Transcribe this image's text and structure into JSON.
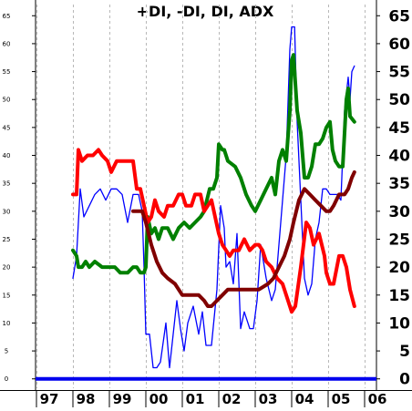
{
  "chart_data": {
    "type": "line",
    "title": "+DI, -DI, DI, ADX",
    "x_tick_labels": [
      "97",
      "98",
      "99",
      "00",
      "01",
      "02",
      "03",
      "04",
      "05",
      "06"
    ],
    "y_ticks": [
      0,
      5,
      10,
      15,
      20,
      25,
      30,
      35,
      40,
      45,
      50,
      55,
      60,
      65
    ],
    "ylim": [
      -2,
      67
    ],
    "x_range": [
      1997.0,
      2006.3
    ],
    "grid": "vertical dashed",
    "zero_line_color": "#0000ee",
    "series": [
      {
        "color": "#0000ff",
        "width": 1.3,
        "points": [
          [
            1998.0,
            18
          ],
          [
            1998.1,
            22
          ],
          [
            1998.2,
            34
          ],
          [
            1998.3,
            29
          ],
          [
            1998.45,
            31
          ],
          [
            1998.6,
            33
          ],
          [
            1998.75,
            34
          ],
          [
            1998.9,
            32
          ],
          [
            1999.05,
            34
          ],
          [
            1999.2,
            34
          ],
          [
            1999.35,
            33
          ],
          [
            1999.5,
            28
          ],
          [
            1999.65,
            33
          ],
          [
            1999.8,
            33
          ],
          [
            1999.9,
            30
          ],
          [
            1999.95,
            20
          ],
          [
            2000.0,
            8
          ],
          [
            2000.1,
            8
          ],
          [
            2000.2,
            2
          ],
          [
            2000.3,
            2
          ],
          [
            2000.4,
            3
          ],
          [
            2000.55,
            10
          ],
          [
            2000.65,
            2
          ],
          [
            2000.75,
            8
          ],
          [
            2000.85,
            14
          ],
          [
            2000.95,
            9
          ],
          [
            2001.05,
            5
          ],
          [
            2001.15,
            10
          ],
          [
            2001.3,
            13
          ],
          [
            2001.45,
            8
          ],
          [
            2001.55,
            12
          ],
          [
            2001.65,
            6
          ],
          [
            2001.8,
            6
          ],
          [
            2001.95,
            16
          ],
          [
            2002.05,
            31
          ],
          [
            2002.15,
            27
          ],
          [
            2002.2,
            20
          ],
          [
            2002.3,
            21
          ],
          [
            2002.4,
            17
          ],
          [
            2002.5,
            26
          ],
          [
            2002.6,
            9
          ],
          [
            2002.7,
            12
          ],
          [
            2002.85,
            9
          ],
          [
            2002.95,
            9
          ],
          [
            2003.05,
            14
          ],
          [
            2003.15,
            24
          ],
          [
            2003.3,
            18
          ],
          [
            2003.45,
            14
          ],
          [
            2003.55,
            16
          ],
          [
            2003.7,
            28
          ],
          [
            2003.85,
            40
          ],
          [
            2003.95,
            59
          ],
          [
            2004.0,
            63
          ],
          [
            2004.08,
            63
          ],
          [
            2004.15,
            46
          ],
          [
            2004.25,
            32
          ],
          [
            2004.35,
            18
          ],
          [
            2004.45,
            15
          ],
          [
            2004.55,
            17
          ],
          [
            2004.65,
            25
          ],
          [
            2004.75,
            28
          ],
          [
            2004.85,
            34
          ],
          [
            2004.95,
            34
          ],
          [
            2005.05,
            33
          ],
          [
            2005.15,
            33
          ],
          [
            2005.25,
            33
          ],
          [
            2005.35,
            32
          ],
          [
            2005.45,
            48
          ],
          [
            2005.55,
            54
          ],
          [
            2005.6,
            50
          ],
          [
            2005.65,
            55
          ],
          [
            2005.72,
            56
          ]
        ]
      },
      {
        "color": "#008000",
        "width": 4,
        "points": [
          [
            1998.0,
            23
          ],
          [
            1998.1,
            22
          ],
          [
            1998.15,
            20
          ],
          [
            1998.25,
            20
          ],
          [
            1998.35,
            21
          ],
          [
            1998.45,
            20
          ],
          [
            1998.6,
            21
          ],
          [
            1998.8,
            20
          ],
          [
            1999.0,
            20
          ],
          [
            1999.15,
            20
          ],
          [
            1999.3,
            19
          ],
          [
            1999.5,
            19
          ],
          [
            1999.65,
            20
          ],
          [
            1999.75,
            20
          ],
          [
            1999.85,
            19
          ],
          [
            1999.95,
            19
          ],
          [
            2000.0,
            20
          ],
          [
            2000.05,
            29
          ],
          [
            2000.15,
            26
          ],
          [
            2000.25,
            27
          ],
          [
            2000.35,
            25
          ],
          [
            2000.45,
            27
          ],
          [
            2000.6,
            27
          ],
          [
            2000.75,
            25
          ],
          [
            2000.9,
            27
          ],
          [
            2001.05,
            28
          ],
          [
            2001.2,
            27
          ],
          [
            2001.35,
            28
          ],
          [
            2001.5,
            29
          ],
          [
            2001.6,
            30
          ],
          [
            2001.75,
            34
          ],
          [
            2001.85,
            34
          ],
          [
            2001.95,
            36
          ],
          [
            2002.0,
            42
          ],
          [
            2002.1,
            41
          ],
          [
            2002.15,
            41
          ],
          [
            2002.25,
            39
          ],
          [
            2002.45,
            38
          ],
          [
            2002.6,
            36
          ],
          [
            2002.75,
            33
          ],
          [
            2002.9,
            31
          ],
          [
            2003.0,
            30
          ],
          [
            2003.15,
            32
          ],
          [
            2003.3,
            34
          ],
          [
            2003.45,
            36
          ],
          [
            2003.55,
            33
          ],
          [
            2003.65,
            39
          ],
          [
            2003.75,
            41
          ],
          [
            2003.85,
            39
          ],
          [
            2003.95,
            48
          ],
          [
            2004.0,
            57
          ],
          [
            2004.05,
            58
          ],
          [
            2004.15,
            48
          ],
          [
            2004.25,
            44
          ],
          [
            2004.35,
            36
          ],
          [
            2004.45,
            36
          ],
          [
            2004.55,
            38
          ],
          [
            2004.65,
            42
          ],
          [
            2004.75,
            42
          ],
          [
            2004.85,
            43
          ],
          [
            2004.95,
            45
          ],
          [
            2005.05,
            46
          ],
          [
            2005.12,
            41
          ],
          [
            2005.2,
            39
          ],
          [
            2005.3,
            38
          ],
          [
            2005.4,
            38
          ],
          [
            2005.5,
            50
          ],
          [
            2005.55,
            52
          ],
          [
            2005.6,
            47
          ],
          [
            2005.72,
            46
          ]
        ]
      },
      {
        "color": "#ff0000",
        "width": 4,
        "points": [
          [
            1998.0,
            33
          ],
          [
            1998.1,
            33
          ],
          [
            1998.15,
            41
          ],
          [
            1998.25,
            39
          ],
          [
            1998.4,
            40
          ],
          [
            1998.55,
            40
          ],
          [
            1998.7,
            41
          ],
          [
            1998.8,
            40
          ],
          [
            1998.95,
            39
          ],
          [
            1999.05,
            37
          ],
          [
            1999.2,
            39
          ],
          [
            1999.35,
            39
          ],
          [
            1999.5,
            39
          ],
          [
            1999.65,
            39
          ],
          [
            1999.75,
            34
          ],
          [
            1999.85,
            34
          ],
          [
            1999.95,
            31
          ],
          [
            2000.05,
            28
          ],
          [
            2000.15,
            29
          ],
          [
            2000.25,
            32
          ],
          [
            2000.35,
            30
          ],
          [
            2000.5,
            29
          ],
          [
            2000.6,
            31
          ],
          [
            2000.75,
            31
          ],
          [
            2000.9,
            33
          ],
          [
            2001.0,
            33
          ],
          [
            2001.1,
            31
          ],
          [
            2001.25,
            31
          ],
          [
            2001.35,
            33
          ],
          [
            2001.5,
            33
          ],
          [
            2001.6,
            30
          ],
          [
            2001.7,
            31
          ],
          [
            2001.8,
            32
          ],
          [
            2001.9,
            29
          ],
          [
            2002.0,
            26
          ],
          [
            2002.1,
            24
          ],
          [
            2002.2,
            23
          ],
          [
            2002.3,
            22
          ],
          [
            2002.4,
            23
          ],
          [
            2002.55,
            23
          ],
          [
            2002.7,
            25
          ],
          [
            2002.85,
            23
          ],
          [
            2003.0,
            24
          ],
          [
            2003.1,
            24
          ],
          [
            2003.2,
            23
          ],
          [
            2003.3,
            21
          ],
          [
            2003.45,
            20
          ],
          [
            2003.6,
            18
          ],
          [
            2003.75,
            17
          ],
          [
            2003.9,
            14
          ],
          [
            2004.0,
            12
          ],
          [
            2004.1,
            13
          ],
          [
            2004.25,
            20
          ],
          [
            2004.4,
            28
          ],
          [
            2004.5,
            27
          ],
          [
            2004.6,
            24
          ],
          [
            2004.75,
            26
          ],
          [
            2004.9,
            22
          ],
          [
            2004.95,
            19
          ],
          [
            2005.05,
            17
          ],
          [
            2005.15,
            17
          ],
          [
            2005.3,
            22
          ],
          [
            2005.4,
            22
          ],
          [
            2005.5,
            20
          ],
          [
            2005.6,
            16
          ],
          [
            2005.72,
            13
          ]
        ]
      },
      {
        "color": "#800000",
        "width": 4,
        "points": [
          [
            1999.65,
            30
          ],
          [
            1999.9,
            30
          ],
          [
            2000.0,
            28
          ],
          [
            2000.15,
            24
          ],
          [
            2000.3,
            21
          ],
          [
            2000.45,
            19
          ],
          [
            2000.6,
            18
          ],
          [
            2000.8,
            17
          ],
          [
            2001.0,
            15
          ],
          [
            2001.2,
            15
          ],
          [
            2001.45,
            15
          ],
          [
            2001.6,
            14
          ],
          [
            2001.7,
            13
          ],
          [
            2001.8,
            13
          ],
          [
            2001.95,
            14
          ],
          [
            2002.1,
            15
          ],
          [
            2002.25,
            16
          ],
          [
            2002.5,
            16
          ],
          [
            2002.8,
            16
          ],
          [
            2003.1,
            16
          ],
          [
            2003.35,
            17
          ],
          [
            2003.5,
            18
          ],
          [
            2003.65,
            20
          ],
          [
            2003.8,
            22
          ],
          [
            2003.95,
            25
          ],
          [
            2004.05,
            28
          ],
          [
            2004.2,
            32
          ],
          [
            2004.35,
            34
          ],
          [
            2004.5,
            33
          ],
          [
            2004.65,
            32
          ],
          [
            2004.8,
            31
          ],
          [
            2004.95,
            30
          ],
          [
            2005.05,
            30
          ],
          [
            2005.15,
            31
          ],
          [
            2005.3,
            33
          ],
          [
            2005.45,
            33
          ],
          [
            2005.55,
            34
          ],
          [
            2005.65,
            36
          ],
          [
            2005.72,
            37
          ]
        ]
      }
    ]
  }
}
